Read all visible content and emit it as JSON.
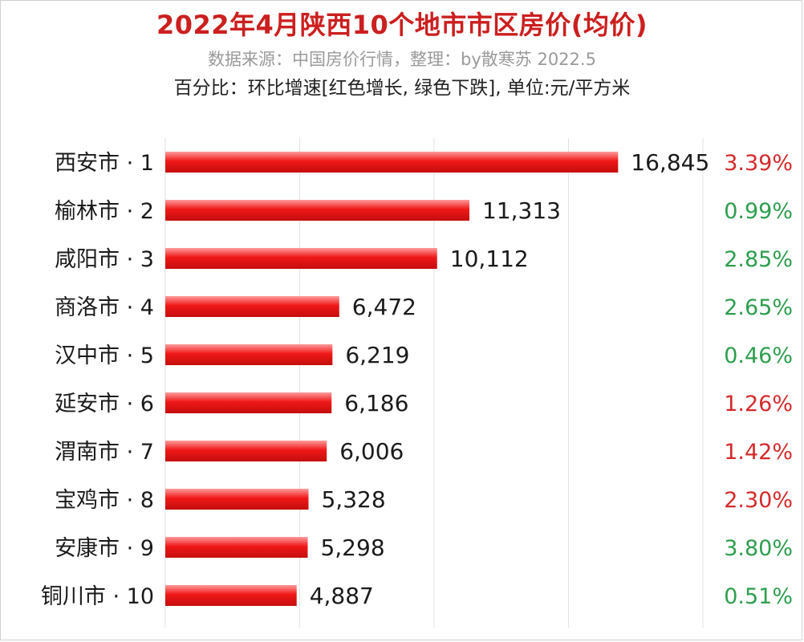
{
  "header": {
    "title": "2022年4月陕西10个地市市区房价(均价)",
    "subtitle": "数据来源：中国房价行情，整理：by散寒苏 2022.5",
    "note": "百分比：环比增速[红色增长, 绿色下跌], 单位:元/平方米"
  },
  "colors": {
    "bar": "#f01818",
    "increase": "#d32a2a",
    "decrease": "#2e9e4e",
    "grid": "#e2e2e2"
  },
  "chart_data": {
    "type": "bar",
    "orientation": "horizontal",
    "title": "2022年4月陕西10个地市市区房价(均价)",
    "unit": "元/平方米",
    "categories": [
      "西安市 · 1",
      "榆林市 · 2",
      "咸阳市 · 3",
      "商洛市 · 4",
      "汉中市 · 5",
      "延安市 · 6",
      "渭南市 · 7",
      "宝鸡市 · 8",
      "安康市 · 9",
      "铜川市 · 10"
    ],
    "values": [
      16845,
      11313,
      10112,
      6472,
      6219,
      6186,
      6006,
      5328,
      5298,
      4887
    ],
    "value_labels": [
      "16,845",
      "11,313",
      "10,112",
      "6,472",
      "6,219",
      "6,186",
      "6,006",
      "5,328",
      "5,298",
      "4,887"
    ],
    "mom_growth": [
      "3.39%",
      "0.99%",
      "2.85%",
      "2.65%",
      "0.46%",
      "1.26%",
      "1.42%",
      "2.30%",
      "3.80%",
      "0.51%"
    ],
    "mom_direction": [
      "increase",
      "decrease",
      "decrease",
      "decrease",
      "decrease",
      "increase",
      "increase",
      "increase",
      "decrease",
      "decrease"
    ],
    "xlim": [
      0,
      20000
    ],
    "grid": true
  }
}
